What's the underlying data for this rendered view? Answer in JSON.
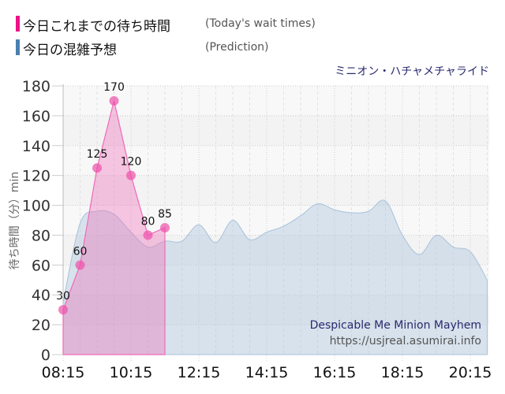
{
  "legend": {
    "actual": {
      "label_jp": "今日これまでの待ち時間",
      "label_en": "(Today's wait times)",
      "color": "#ee1188"
    },
    "prediction": {
      "label_jp": "今日の混雑予想",
      "label_en": "(Prediction)",
      "color": "#4a7fb0"
    }
  },
  "ride_name_jp": "ミニオン・ハチャメチャライド",
  "watermark": {
    "title": "Despicable Me Minion Mayhem",
    "url": "https://usjreal.asumirai.info"
  },
  "chart_data": {
    "type": "area",
    "title": "ミニオン・ハチャメチャライド",
    "xlabel": "",
    "ylabel": "待ち時間（分）min",
    "ylim": [
      0,
      180
    ],
    "yticks": [
      0,
      20,
      40,
      60,
      80,
      100,
      120,
      140,
      160,
      180
    ],
    "xtick_labels": [
      "08:15",
      "10:15",
      "12:15",
      "14:15",
      "16:15",
      "18:15",
      "20:15"
    ],
    "grid": true,
    "legend_position": "top-left",
    "series": [
      {
        "name": "今日これまでの待ち時間 (Today's wait times)",
        "x": [
          "08:15",
          "08:45",
          "09:15",
          "09:45",
          "10:15",
          "10:45",
          "11:15"
        ],
        "values": [
          30,
          60,
          125,
          170,
          120,
          80,
          85
        ],
        "data_labels": [
          "30",
          "60",
          "125",
          "170",
          "120",
          "80",
          "85"
        ]
      },
      {
        "name": "今日の混雑予想 (Prediction)",
        "x": [
          "08:15",
          "08:45",
          "09:15",
          "09:45",
          "10:15",
          "10:45",
          "11:15",
          "11:45",
          "12:15",
          "12:45",
          "13:15",
          "13:45",
          "14:15",
          "14:45",
          "15:15",
          "15:45",
          "16:15",
          "16:45",
          "17:15",
          "17:45",
          "18:15",
          "18:45",
          "19:15",
          "19:45",
          "20:15",
          "20:45"
        ],
        "values": [
          35,
          88,
          96,
          94,
          82,
          72,
          76,
          76,
          87,
          75,
          90,
          77,
          82,
          86,
          93,
          101,
          97,
          95,
          96,
          103,
          80,
          67,
          80,
          72,
          69,
          50
        ]
      }
    ]
  }
}
